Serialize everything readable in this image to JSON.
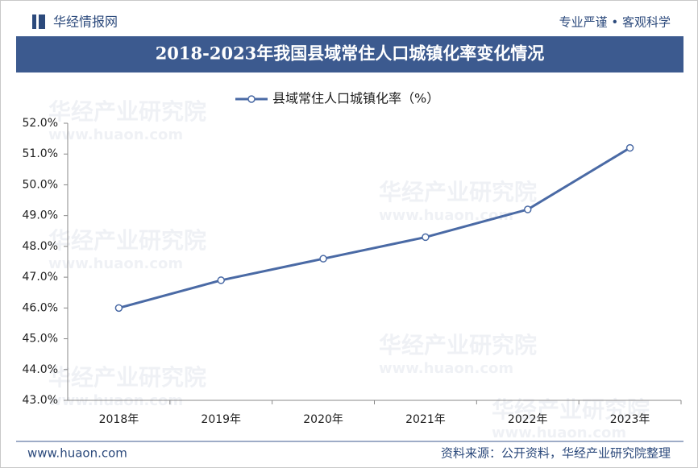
{
  "header": {
    "brand": "华经情报网",
    "slogan": "专业严谨 • 客观科学"
  },
  "chart_data": {
    "type": "line",
    "title": "2018-2023年我国县域常住人口城镇化率变化情况",
    "categories": [
      "2018年",
      "2019年",
      "2020年",
      "2021年",
      "2022年",
      "2023年"
    ],
    "series": [
      {
        "name": "县域常住人口城镇化率（%）",
        "color": "#4a6aa5",
        "values": [
          46.0,
          46.9,
          47.6,
          48.3,
          49.2,
          51.2
        ]
      }
    ],
    "ylim": [
      43,
      52
    ],
    "yticks": [
      {
        "value": 43,
        "label": "43.0%"
      },
      {
        "value": 44,
        "label": "44.0%"
      },
      {
        "value": 45,
        "label": "45.0%"
      },
      {
        "value": 46,
        "label": "46.0%"
      },
      {
        "value": 47,
        "label": "47.0%"
      },
      {
        "value": 48,
        "label": "48.0%"
      },
      {
        "value": 49,
        "label": "49.0%"
      },
      {
        "value": 50,
        "label": "50.0%"
      },
      {
        "value": 51,
        "label": "51.0%"
      },
      {
        "value": 52,
        "label": "52.0%"
      }
    ],
    "watermark": "华经产业研究院",
    "watermark_url": "www.huaon.com"
  },
  "footer": {
    "url": "www.huaon.com",
    "source": "资料来源：公开资料，华经产业研究院整理"
  }
}
